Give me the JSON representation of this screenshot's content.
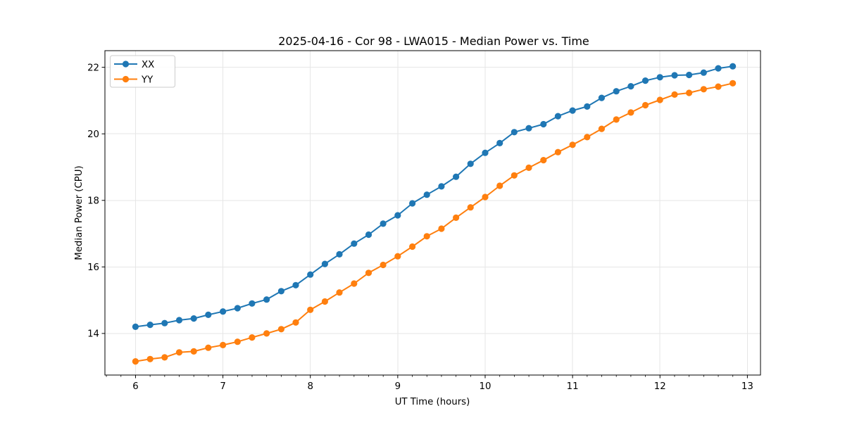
{
  "figure": {
    "background": "#ffffff"
  },
  "chart_data": {
    "type": "line",
    "title": "2025-04-16 - Cor 98 - LWA015 - Median Power vs. Time",
    "xlabel": "UT Time (hours)",
    "ylabel": "Median Power (CPU)",
    "xlim": [
      5.65,
      13.15
    ],
    "ylim": [
      12.75,
      22.5
    ],
    "x_ticks": [
      6,
      7,
      8,
      9,
      10,
      11,
      12,
      13
    ],
    "y_ticks": [
      14,
      16,
      18,
      20,
      22
    ],
    "x_minor_tick_step": 0.16667,
    "grid": true,
    "grid_color": "#e6e6e6",
    "spine_color": "#000000",
    "legend_position": "upper left",
    "x": [
      6.0,
      6.167,
      6.333,
      6.5,
      6.667,
      6.833,
      7.0,
      7.167,
      7.333,
      7.5,
      7.667,
      7.833,
      8.0,
      8.167,
      8.333,
      8.5,
      8.667,
      8.833,
      9.0,
      9.167,
      9.333,
      9.5,
      9.667,
      9.833,
      10.0,
      10.167,
      10.333,
      10.5,
      10.667,
      10.833,
      11.0,
      11.167,
      11.333,
      11.5,
      11.667,
      11.833,
      12.0,
      12.167,
      12.333,
      12.5,
      12.667,
      12.833
    ],
    "series": [
      {
        "name": "XX",
        "color": "#1f77b4",
        "marker": "circle",
        "values": [
          14.2,
          14.26,
          14.31,
          14.4,
          14.45,
          14.56,
          14.66,
          14.76,
          14.9,
          15.02,
          15.27,
          15.45,
          15.77,
          16.09,
          16.38,
          16.7,
          16.97,
          17.3,
          17.55,
          17.91,
          18.17,
          18.42,
          18.71,
          19.1,
          19.43,
          19.72,
          20.05,
          20.17,
          20.29,
          20.53,
          20.7,
          20.82,
          21.08,
          21.28,
          21.43,
          21.6,
          21.7,
          21.76,
          21.77,
          21.84,
          21.97,
          22.03
        ]
      },
      {
        "name": "YY",
        "color": "#ff7f0e",
        "marker": "circle",
        "values": [
          13.16,
          13.23,
          13.28,
          13.43,
          13.46,
          13.57,
          13.65,
          13.75,
          13.88,
          14.0,
          14.13,
          14.33,
          14.71,
          14.96,
          15.23,
          15.5,
          15.82,
          16.06,
          16.32,
          16.61,
          16.92,
          17.15,
          17.48,
          17.79,
          18.1,
          18.44,
          18.75,
          18.98,
          19.21,
          19.45,
          19.67,
          19.9,
          20.15,
          20.43,
          20.64,
          20.86,
          21.02,
          21.18,
          21.23,
          21.34,
          21.42,
          21.52
        ]
      }
    ]
  }
}
